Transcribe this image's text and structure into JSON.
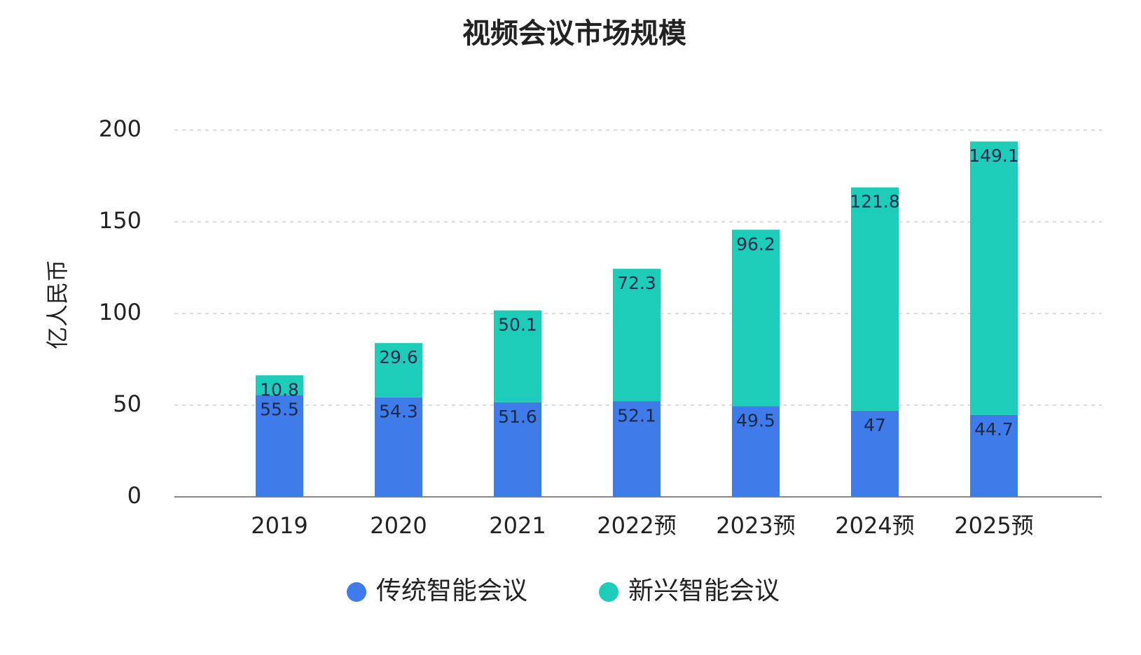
{
  "chart_data": {
    "type": "bar",
    "stacked": true,
    "title": "视频会议市场规模",
    "y_label": "亿人民币",
    "categories": [
      "2019",
      "2020",
      "2021",
      "2022预",
      "2023预",
      "2024预",
      "2025预"
    ],
    "series": [
      {
        "name": "传统智能会议",
        "color": "#3f7be9",
        "values": [
          55.5,
          54.3,
          51.6,
          52.1,
          49.5,
          47,
          44.7
        ]
      },
      {
        "name": "新兴智能会议",
        "color": "#1ecdb9",
        "values": [
          10.8,
          29.6,
          50.1,
          72.3,
          96.2,
          121.8,
          149.1
        ]
      }
    ],
    "ylim": [
      0,
      200
    ],
    "yticks": [
      0,
      50,
      100,
      150,
      200
    ],
    "grid": true,
    "legend": "bottom"
  }
}
